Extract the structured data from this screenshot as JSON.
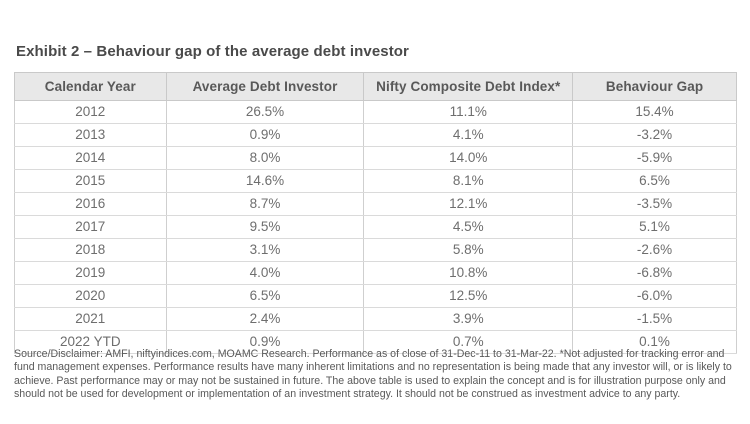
{
  "page": {
    "title": "Exhibit 2 – Behaviour gap of the average debt investor",
    "disclaimer": "Source/Disclaimer: AMFI, niftyindices.com, MOAMC Research. Performance as of close of 31-Dec-11 to 31-Mar-22. *Not adjusted for tracking error and fund management expenses. Performance results have many inherent limitations and no representation is being made that any investor will, or is likely to achieve. Past performance may or may not be sustained in future. The above table is used to explain the concept and is for illustration purpose only and should not be used for development or implementation of an investment strategy. It should not be construed as investment advice to any party."
  },
  "chart_data": {
    "type": "table",
    "title": "Exhibit 2 – Behaviour gap of the average debt investor",
    "columns": [
      "Calendar Year",
      "Average Debt Investor",
      "Nifty Composite Debt Index*",
      "Behaviour Gap"
    ],
    "rows": [
      [
        "2012",
        "26.5%",
        "11.1%",
        "15.4%"
      ],
      [
        "2013",
        "0.9%",
        "4.1%",
        "-3.2%"
      ],
      [
        "2014",
        "8.0%",
        "14.0%",
        "-5.9%"
      ],
      [
        "2015",
        "14.6%",
        "8.1%",
        "6.5%"
      ],
      [
        "2016",
        "8.7%",
        "12.1%",
        "-3.5%"
      ],
      [
        "2017",
        "9.5%",
        "4.5%",
        "5.1%"
      ],
      [
        "2018",
        "3.1%",
        "5.8%",
        "-2.6%"
      ],
      [
        "2019",
        "4.0%",
        "10.8%",
        "-6.8%"
      ],
      [
        "2020",
        "6.5%",
        "12.5%",
        "-6.0%"
      ],
      [
        "2021",
        "2.4%",
        "3.9%",
        "-1.5%"
      ],
      [
        "2022 YTD",
        "0.9%",
        "0.7%",
        "0.1%"
      ]
    ]
  },
  "colors": {
    "header_background": "#e8e8e8",
    "header_text": "#595959",
    "body_text": "#6e6e6e",
    "title_text": "#4a4a4a",
    "border_outer": "#c2c2c2",
    "border_inner": "#cfcfcf",
    "page_background": "#ffffff"
  }
}
